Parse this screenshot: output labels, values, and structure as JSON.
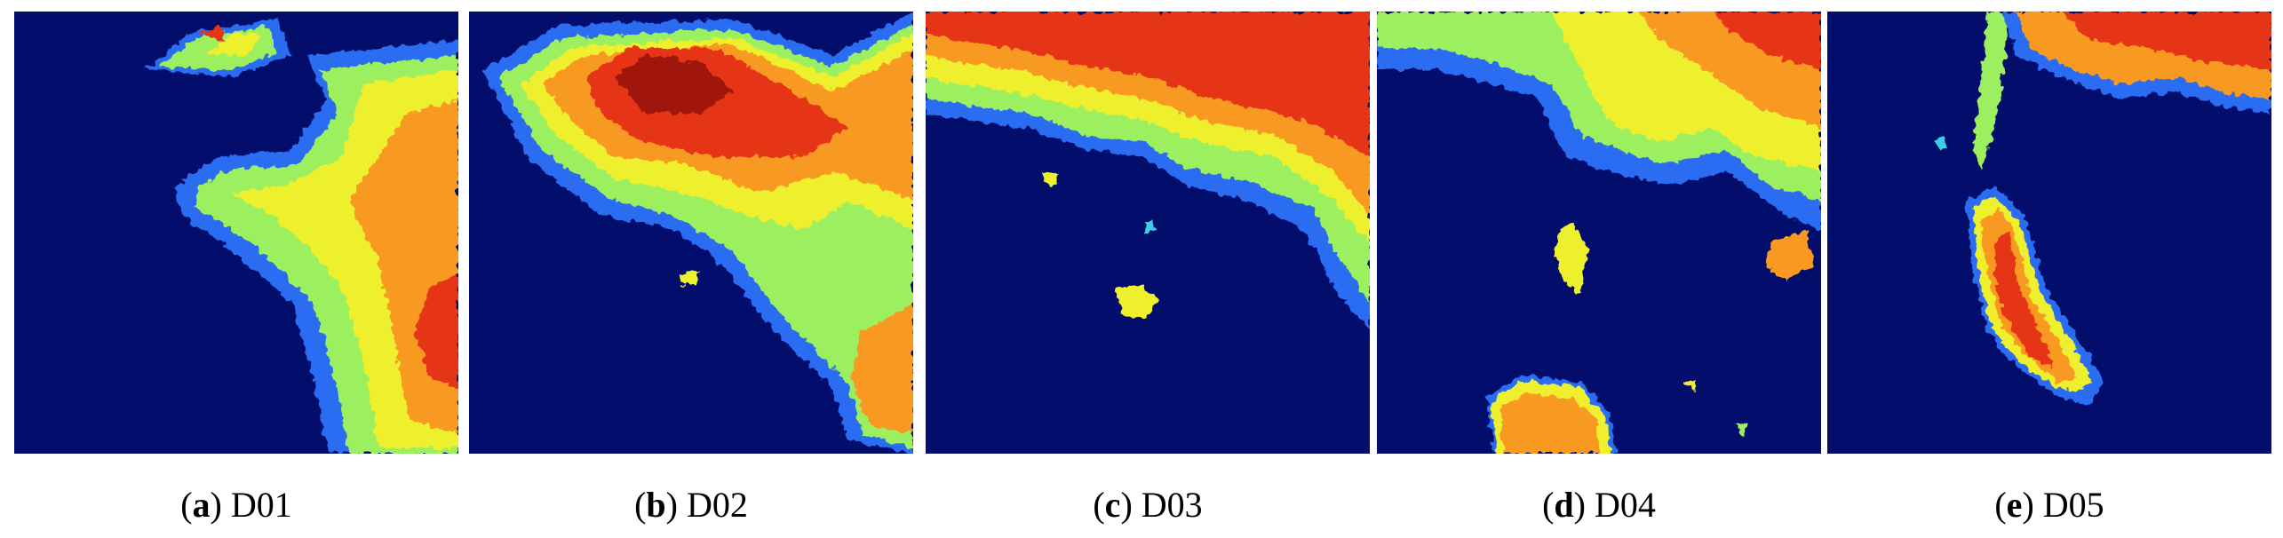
{
  "figure": {
    "panels": [
      {
        "open": "(",
        "letter": "a",
        "text": ") D01"
      },
      {
        "open": "(",
        "letter": "b",
        "text": ") D02"
      },
      {
        "open": "(",
        "letter": "c",
        "text": ") D03"
      },
      {
        "open": "(",
        "letter": "d",
        "text": ") D04"
      },
      {
        "open": "(",
        "letter": "e",
        "text": ") D05"
      }
    ]
  }
}
